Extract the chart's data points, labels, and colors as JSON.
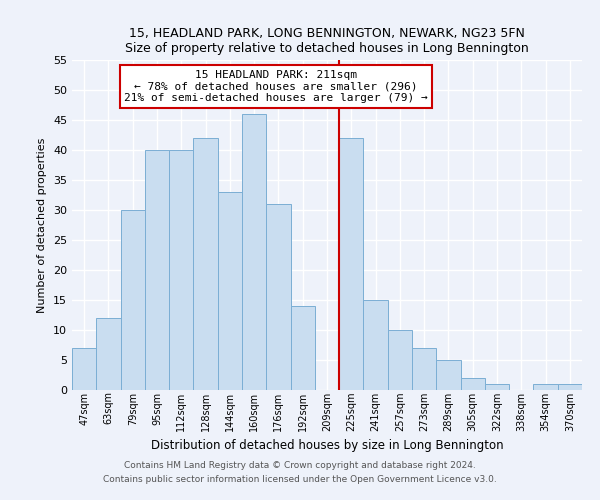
{
  "title": "15, HEADLAND PARK, LONG BENNINGTON, NEWARK, NG23 5FN",
  "subtitle": "Size of property relative to detached houses in Long Bennington",
  "xlabel": "Distribution of detached houses by size in Long Bennington",
  "ylabel": "Number of detached properties",
  "bar_labels": [
    "47sqm",
    "63sqm",
    "79sqm",
    "95sqm",
    "112sqm",
    "128sqm",
    "144sqm",
    "160sqm",
    "176sqm",
    "192sqm",
    "209sqm",
    "225sqm",
    "241sqm",
    "257sqm",
    "273sqm",
    "289sqm",
    "305sqm",
    "322sqm",
    "338sqm",
    "354sqm",
    "370sqm"
  ],
  "bar_values": [
    7,
    12,
    30,
    40,
    40,
    42,
    33,
    46,
    31,
    14,
    0,
    42,
    15,
    10,
    7,
    5,
    2,
    1,
    0,
    1,
    1
  ],
  "bar_color": "#c9ddf0",
  "bar_edge_color": "#7baed4",
  "vline_x": 10.5,
  "vline_color": "#cc0000",
  "ylim": [
    0,
    55
  ],
  "yticks": [
    0,
    5,
    10,
    15,
    20,
    25,
    30,
    35,
    40,
    45,
    50,
    55
  ],
  "annotation_title": "15 HEADLAND PARK: 211sqm",
  "annotation_line1": "← 78% of detached houses are smaller (296)",
  "annotation_line2": "21% of semi-detached houses are larger (79) →",
  "footer1": "Contains HM Land Registry data © Crown copyright and database right 2024.",
  "footer2": "Contains public sector information licensed under the Open Government Licence v3.0.",
  "background_color": "#eef2fa",
  "grid_color": "#ffffff"
}
